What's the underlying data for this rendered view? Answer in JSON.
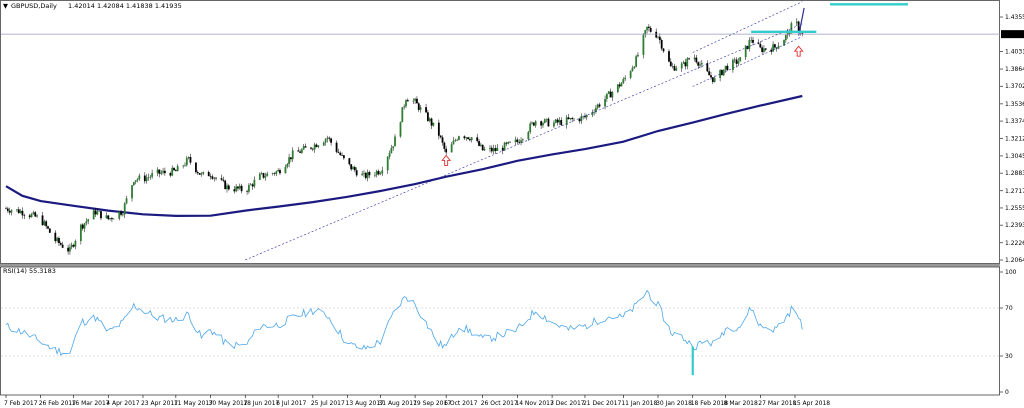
{
  "header": {
    "menu_glyph": "▼",
    "symbol": "GBPUSD,Daily",
    "ohlc": "1.42014 1.42084 1.41838 1.41935"
  },
  "rsi_header": "RSI(14) 55.3183",
  "price_axis": {
    "ticks": [
      "1.43550",
      "1.40310",
      "1.38645",
      "1.37025",
      "1.35360",
      "1.33740",
      "1.32120",
      "1.30455",
      "1.28835",
      "1.27170",
      "1.25550",
      "1.23930",
      "1.22265",
      "1.20645"
    ],
    "current_price": "1.41935"
  },
  "rsi_axis": {
    "ticks": [
      "100",
      "70",
      "30",
      "0"
    ]
  },
  "date_axis": {
    "labels": [
      "7 Feb 2017",
      "26 Feb 2017",
      "16 Mar 2017",
      "4 Apr 2017",
      "23 Apr 2017",
      "11 May 2017",
      "30 May 2017",
      "18 Jun 2017",
      "6 Jul 2017",
      "25 Jul 2017",
      "13 Aug 2017",
      "31 Aug 2017",
      "19 Sep 2017",
      "6 Oct 2017",
      "26 Oct 2017",
      "14 Nov 2017",
      "3 Dec 2017",
      "21 Dec 2017",
      "11 Jan 2018",
      "30 Jan 2018",
      "18 Feb 2018",
      "8 Mar 2018",
      "27 Mar 2018",
      "15 Apr 2018"
    ]
  },
  "colors": {
    "bull_candle": "#2e7d32",
    "bear_candle": "#000000",
    "moving_average": "#1a1a80",
    "channel": "#2a2a9a",
    "highlight": "#33cccc",
    "arrow": "#e03030",
    "rsi_line": "#4da6e8",
    "current_price_line": "#9999bb"
  },
  "chart_data": [
    {
      "type": "candlestick",
      "symbol": "GBPUSD",
      "timeframe": "Daily",
      "ylim": [
        1.20645,
        1.445
      ],
      "x_range": [
        "7 Feb 2017",
        "19 Apr 2018"
      ],
      "close_path": [
        {
          "date": "7 Feb 2017",
          "close": 1.255
        },
        {
          "date": "16 Feb 2017",
          "close": 1.252
        },
        {
          "date": "26 Feb 2017",
          "close": 1.245
        },
        {
          "date": "6 Mar 2017",
          "close": 1.225
        },
        {
          "date": "14 Mar 2017",
          "close": 1.215
        },
        {
          "date": "20 Mar 2017",
          "close": 1.238
        },
        {
          "date": "28 Mar 2017",
          "close": 1.252
        },
        {
          "date": "4 Apr 2017",
          "close": 1.245
        },
        {
          "date": "12 Apr 2017",
          "close": 1.253
        },
        {
          "date": "18 Apr 2017",
          "close": 1.283
        },
        {
          "date": "23 Apr 2017",
          "close": 1.283
        },
        {
          "date": "1 May 2017",
          "close": 1.288
        },
        {
          "date": "11 May 2017",
          "close": 1.29
        },
        {
          "date": "18 May 2017",
          "close": 1.301
        },
        {
          "date": "25 May 2017",
          "close": 1.286
        },
        {
          "date": "30 May 2017",
          "close": 1.288
        },
        {
          "date": "8 Jun 2017",
          "close": 1.275
        },
        {
          "date": "18 Jun 2017",
          "close": 1.272
        },
        {
          "date": "26 Jun 2017",
          "close": 1.285
        },
        {
          "date": "6 Jul 2017",
          "close": 1.29
        },
        {
          "date": "14 Jul 2017",
          "close": 1.306
        },
        {
          "date": "25 Jul 2017",
          "close": 1.314
        },
        {
          "date": "2 Aug 2017",
          "close": 1.322
        },
        {
          "date": "13 Aug 2017",
          "close": 1.296
        },
        {
          "date": "22 Aug 2017",
          "close": 1.285
        },
        {
          "date": "31 Aug 2017",
          "close": 1.291
        },
        {
          "date": "8 Sep 2017",
          "close": 1.32
        },
        {
          "date": "14 Sep 2017",
          "close": 1.36
        },
        {
          "date": "19 Sep 2017",
          "close": 1.355
        },
        {
          "date": "26 Sep 2017",
          "close": 1.34
        },
        {
          "date": "2 Oct 2017",
          "close": 1.325
        },
        {
          "date": "6 Oct 2017",
          "close": 1.306
        },
        {
          "date": "13 Oct 2017",
          "close": 1.325
        },
        {
          "date": "20 Oct 2017",
          "close": 1.322
        },
        {
          "date": "26 Oct 2017",
          "close": 1.31
        },
        {
          "date": "2 Nov 2017",
          "close": 1.31
        },
        {
          "date": "14 Nov 2017",
          "close": 1.318
        },
        {
          "date": "24 Nov 2017",
          "close": 1.338
        },
        {
          "date": "3 Dec 2017",
          "close": 1.335
        },
        {
          "date": "12 Dec 2017",
          "close": 1.338
        },
        {
          "date": "21 Dec 2017",
          "close": 1.341
        },
        {
          "date": "2 Jan 2018",
          "close": 1.36
        },
        {
          "date": "11 Jan 2018",
          "close": 1.375
        },
        {
          "date": "18 Jan 2018",
          "close": 1.395
        },
        {
          "date": "24 Jan 2018",
          "close": 1.425
        },
        {
          "date": "30 Jan 2018",
          "close": 1.418
        },
        {
          "date": "6 Feb 2018",
          "close": 1.388
        },
        {
          "date": "13 Feb 2018",
          "close": 1.39
        },
        {
          "date": "18 Feb 2018",
          "close": 1.4
        },
        {
          "date": "26 Feb 2018",
          "close": 1.382
        },
        {
          "date": "2 Mar 2018",
          "close": 1.376
        },
        {
          "date": "8 Mar 2018",
          "close": 1.388
        },
        {
          "date": "16 Mar 2018",
          "close": 1.395
        },
        {
          "date": "22 Mar 2018",
          "close": 1.415
        },
        {
          "date": "27 Mar 2018",
          "close": 1.405
        },
        {
          "date": "4 Apr 2018",
          "close": 1.407
        },
        {
          "date": "10 Apr 2018",
          "close": 1.417
        },
        {
          "date": "15 Apr 2018",
          "close": 1.432
        },
        {
          "date": "17 Apr 2018",
          "close": 1.425
        },
        {
          "date": "19 Apr 2018",
          "close": 1.4194
        }
      ],
      "moving_average": [
        {
          "date": "7 Feb 2017",
          "value": 1.276
        },
        {
          "date": "16 Feb 2017",
          "value": 1.267
        },
        {
          "date": "26 Feb 2017",
          "value": 1.262
        },
        {
          "date": "16 Mar 2017",
          "value": 1.2575
        },
        {
          "date": "4 Apr 2017",
          "value": 1.253
        },
        {
          "date": "23 Apr 2017",
          "value": 1.2495
        },
        {
          "date": "11 May 2017",
          "value": 1.248
        },
        {
          "date": "30 May 2017",
          "value": 1.2482
        },
        {
          "date": "18 Jun 2017",
          "value": 1.253
        },
        {
          "date": "6 Jul 2017",
          "value": 1.2568
        },
        {
          "date": "25 Jul 2017",
          "value": 1.261
        },
        {
          "date": "13 Aug 2017",
          "value": 1.266
        },
        {
          "date": "31 Aug 2017",
          "value": 1.2715
        },
        {
          "date": "19 Sep 2017",
          "value": 1.278
        },
        {
          "date": "6 Oct 2017",
          "value": 1.285
        },
        {
          "date": "26 Oct 2017",
          "value": 1.292
        },
        {
          "date": "14 Nov 2017",
          "value": 1.3
        },
        {
          "date": "3 Dec 2017",
          "value": 1.306
        },
        {
          "date": "21 Dec 2017",
          "value": 1.311
        },
        {
          "date": "11 Jan 2018",
          "value": 1.318
        },
        {
          "date": "30 Jan 2018",
          "value": 1.328
        },
        {
          "date": "18 Feb 2018",
          "value": 1.336
        },
        {
          "date": "8 Mar 2018",
          "value": 1.344
        },
        {
          "date": "27 Mar 2018",
          "value": 1.352
        },
        {
          "date": "19 Apr 2018",
          "value": 1.361
        }
      ],
      "trendline_long": {
        "from": {
          "date": "18 Jun 2017",
          "price": 1.2065
        },
        "to": {
          "date": "19 Apr 2018",
          "price": 1.429
        }
      },
      "channel_upper": {
        "from": {
          "date": "18 Feb 2018",
          "price": 1.402
        },
        "to": {
          "date": "19 Apr 2018",
          "price": 1.45
        }
      },
      "channel_lower": {
        "from": {
          "date": "18 Feb 2018",
          "price": 1.37
        },
        "to": {
          "date": "19 Apr 2018",
          "price": 1.417
        }
      },
      "projection_line": {
        "from": {
          "date": "17 Apr 2018",
          "price": 1.418
        },
        "to": {
          "date": "20 Apr 2018",
          "price": 1.444
        }
      },
      "support_level": {
        "price": 1.4215,
        "from": "22 Mar 2018",
        "to": "19 Apr 2018"
      },
      "target_level": {
        "price": 1.4475
      },
      "arrows": [
        {
          "date": "6 Oct 2017",
          "price": 1.305,
          "direction": "up"
        },
        {
          "date": "17 Apr 2018",
          "price": 1.408,
          "direction": "up"
        }
      ]
    },
    {
      "type": "line",
      "indicator": "RSI",
      "period": 14,
      "last_value": 55.3183,
      "ylim": [
        0,
        100
      ],
      "levels": [
        70,
        30
      ],
      "series": [
        {
          "date": "7 Feb 2017",
          "value": 55
        },
        {
          "date": "16 Feb 2017",
          "value": 50
        },
        {
          "date": "26 Feb 2017",
          "value": 42
        },
        {
          "date": "6 Mar 2017",
          "value": 35
        },
        {
          "date": "14 Mar 2017",
          "value": 32
        },
        {
          "date": "20 Mar 2017",
          "value": 58
        },
        {
          "date": "28 Mar 2017",
          "value": 62
        },
        {
          "date": "4 Apr 2017",
          "value": 50
        },
        {
          "date": "12 Apr 2017",
          "value": 58
        },
        {
          "date": "18 Apr 2017",
          "value": 72
        },
        {
          "date": "23 Apr 2017",
          "value": 68
        },
        {
          "date": "1 May 2017",
          "value": 62
        },
        {
          "date": "11 May 2017",
          "value": 60
        },
        {
          "date": "18 May 2017",
          "value": 65
        },
        {
          "date": "25 May 2017",
          "value": 45
        },
        {
          "date": "30 May 2017",
          "value": 52
        },
        {
          "date": "8 Jun 2017",
          "value": 40
        },
        {
          "date": "18 Jun 2017",
          "value": 38
        },
        {
          "date": "26 Jun 2017",
          "value": 55
        },
        {
          "date": "6 Jul 2017",
          "value": 56
        },
        {
          "date": "14 Jul 2017",
          "value": 62
        },
        {
          "date": "25 Jul 2017",
          "value": 68
        },
        {
          "date": "2 Aug 2017",
          "value": 64
        },
        {
          "date": "13 Aug 2017",
          "value": 40
        },
        {
          "date": "22 Aug 2017",
          "value": 36
        },
        {
          "date": "31 Aug 2017",
          "value": 42
        },
        {
          "date": "8 Sep 2017",
          "value": 68
        },
        {
          "date": "14 Sep 2017",
          "value": 80
        },
        {
          "date": "19 Sep 2017",
          "value": 73
        },
        {
          "date": "26 Sep 2017",
          "value": 55
        },
        {
          "date": "2 Oct 2017",
          "value": 40
        },
        {
          "date": "6 Oct 2017",
          "value": 38
        },
        {
          "date": "13 Oct 2017",
          "value": 55
        },
        {
          "date": "20 Oct 2017",
          "value": 50
        },
        {
          "date": "26 Oct 2017",
          "value": 44
        },
        {
          "date": "2 Nov 2017",
          "value": 46
        },
        {
          "date": "14 Nov 2017",
          "value": 52
        },
        {
          "date": "24 Nov 2017",
          "value": 68
        },
        {
          "date": "3 Dec 2017",
          "value": 58
        },
        {
          "date": "12 Dec 2017",
          "value": 52
        },
        {
          "date": "21 Dec 2017",
          "value": 55
        },
        {
          "date": "2 Jan 2018",
          "value": 63
        },
        {
          "date": "11 Jan 2018",
          "value": 62
        },
        {
          "date": "18 Jan 2018",
          "value": 72
        },
        {
          "date": "24 Jan 2018",
          "value": 84
        },
        {
          "date": "30 Jan 2018",
          "value": 72
        },
        {
          "date": "6 Feb 2018",
          "value": 50
        },
        {
          "date": "13 Feb 2018",
          "value": 45
        },
        {
          "date": "18 Feb 2018",
          "value": 38
        },
        {
          "date": "26 Feb 2018",
          "value": 42
        },
        {
          "date": "2 Mar 2018",
          "value": 40
        },
        {
          "date": "8 Mar 2018",
          "value": 53
        },
        {
          "date": "16 Mar 2018",
          "value": 55
        },
        {
          "date": "22 Mar 2018",
          "value": 70
        },
        {
          "date": "27 Mar 2018",
          "value": 55
        },
        {
          "date": "4 Apr 2018",
          "value": 52
        },
        {
          "date": "10 Apr 2018",
          "value": 62
        },
        {
          "date": "15 Apr 2018",
          "value": 73
        },
        {
          "date": "17 Apr 2018",
          "value": 60
        },
        {
          "date": "19 Apr 2018",
          "value": 55.3
        }
      ],
      "marker": {
        "date": "18 Feb 2018",
        "from": 14,
        "to": 38
      }
    }
  ]
}
